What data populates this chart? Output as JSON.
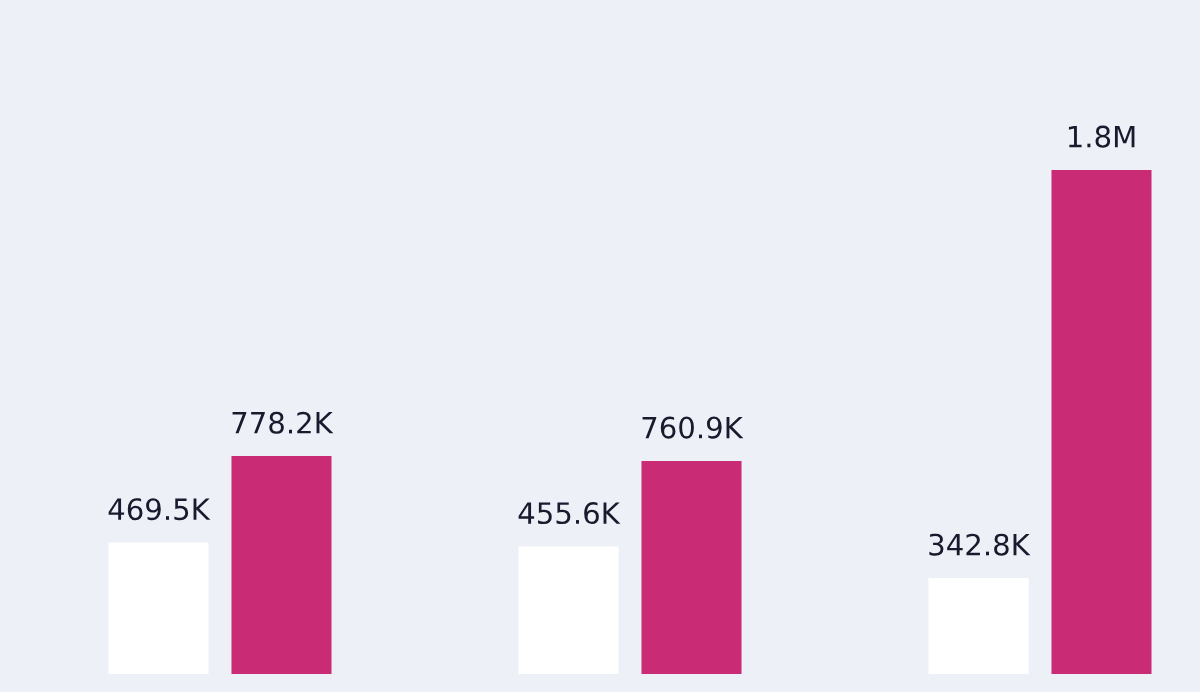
{
  "chart_data": {
    "type": "bar",
    "categories": [
      null,
      null,
      null
    ],
    "series": [
      {
        "color": "#ffffff",
        "values": [
          469500,
          455600,
          342800
        ],
        "value_labels": [
          "469.5K",
          "455.6K",
          "342.8K"
        ]
      },
      {
        "color": "#c92b74",
        "values": [
          778200,
          760900,
          1800000
        ],
        "value_labels": [
          "778.2K",
          "760.9K",
          "1.8M"
        ]
      }
    ],
    "grid": false,
    "tick_labels": false
  }
}
